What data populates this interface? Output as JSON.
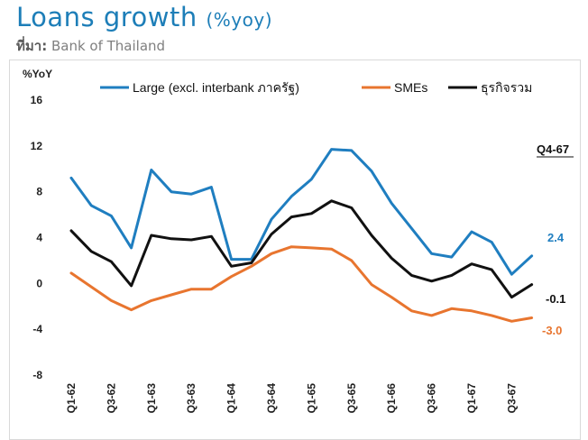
{
  "header": {
    "title": "Loans growth",
    "title_unit": "(%yoy)",
    "source_label": "ที่มา:",
    "source_text": " Bank of Thailand"
  },
  "colors": {
    "title": "#1d7eb8",
    "large": "#1f7ec0",
    "smes": "#e8752f",
    "total": "#111111"
  },
  "chart_data": {
    "type": "line",
    "ylabel": "%YoY",
    "ylim": [
      -8,
      16
    ],
    "yticks": [
      -8,
      -4,
      0,
      4,
      8,
      12,
      16
    ],
    "x": [
      "Q1-62",
      "Q2-62",
      "Q3-62",
      "Q4-62",
      "Q1-63",
      "Q2-63",
      "Q3-63",
      "Q4-63",
      "Q1-64",
      "Q2-64",
      "Q3-64",
      "Q4-64",
      "Q1-65",
      "Q2-65",
      "Q3-65",
      "Q4-65",
      "Q1-66",
      "Q2-66",
      "Q3-66",
      "Q4-66",
      "Q1-67",
      "Q2-67",
      "Q3-67",
      "Q4-67"
    ],
    "tick_labels": [
      "Q1-62",
      "Q3-62",
      "Q1-63",
      "Q3-63",
      "Q1-64",
      "Q3-64",
      "Q1-65",
      "Q3-65",
      "Q1-66",
      "Q3-66",
      "Q1-67",
      "Q3-67"
    ],
    "legend_position": "top",
    "series": [
      {
        "name": "Large (excl. interbank ภาครัฐ)",
        "color": "#1f7ec0",
        "values": [
          9.2,
          6.8,
          5.9,
          3.1,
          9.9,
          8.0,
          7.8,
          8.4,
          2.1,
          2.1,
          5.6,
          7.6,
          9.1,
          11.7,
          11.6,
          9.8,
          7.0,
          4.8,
          2.6,
          2.3,
          4.5,
          3.6,
          0.8,
          2.4
        ]
      },
      {
        "name": "SMEs",
        "color": "#e8752f",
        "values": [
          0.9,
          -0.3,
          -1.5,
          -2.3,
          -1.5,
          -1.0,
          -0.5,
          -0.5,
          0.6,
          1.5,
          2.6,
          3.2,
          3.1,
          3.0,
          2.0,
          -0.1,
          -1.2,
          -2.4,
          -2.8,
          -2.2,
          -2.4,
          -2.8,
          -3.3,
          -3.0
        ]
      },
      {
        "name": "ธุรกิจรวม",
        "color": "#111111",
        "values": [
          4.6,
          2.8,
          1.9,
          -0.2,
          4.2,
          3.9,
          3.8,
          4.1,
          1.5,
          1.8,
          4.3,
          5.8,
          6.1,
          7.2,
          6.6,
          4.2,
          2.2,
          0.7,
          0.2,
          0.7,
          1.7,
          1.2,
          -1.2,
          -0.1
        ]
      }
    ],
    "annotations": {
      "period": "Q4-67",
      "large_last": "2.4",
      "total_last": "-0.1",
      "smes_last": "-3.0"
    }
  }
}
